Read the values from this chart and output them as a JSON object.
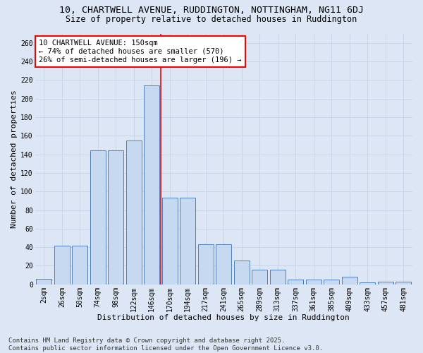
{
  "title": "10, CHARTWELL AVENUE, RUDDINGTON, NOTTINGHAM, NG11 6DJ",
  "subtitle": "Size of property relative to detached houses in Ruddington",
  "xlabel": "Distribution of detached houses by size in Ruddington",
  "ylabel": "Number of detached properties",
  "categories": [
    "2sqm",
    "26sqm",
    "50sqm",
    "74sqm",
    "98sqm",
    "122sqm",
    "146sqm",
    "170sqm",
    "194sqm",
    "217sqm",
    "241sqm",
    "265sqm",
    "289sqm",
    "313sqm",
    "337sqm",
    "361sqm",
    "385sqm",
    "409sqm",
    "433sqm",
    "457sqm",
    "481sqm"
  ],
  "values": [
    6,
    42,
    42,
    144,
    144,
    155,
    214,
    93,
    93,
    43,
    43,
    26,
    16,
    16,
    5,
    5,
    5,
    8,
    2,
    3,
    3
  ],
  "bar_color": "#c6d9f1",
  "bar_edge_color": "#4f81bd",
  "grid_color": "#c8d4e8",
  "background_color": "#dce6f5",
  "annotation_box_text": "10 CHARTWELL AVENUE: 150sqm\n← 74% of detached houses are smaller (570)\n26% of semi-detached houses are larger (196) →",
  "vline_x": 6.5,
  "ylim": [
    0,
    270
  ],
  "yticks": [
    0,
    20,
    40,
    60,
    80,
    100,
    120,
    140,
    160,
    180,
    200,
    220,
    240,
    260
  ],
  "footer_line1": "Contains HM Land Registry data © Crown copyright and database right 2025.",
  "footer_line2": "Contains public sector information licensed under the Open Government Licence v3.0.",
  "title_fontsize": 9.5,
  "subtitle_fontsize": 8.5,
  "xlabel_fontsize": 8,
  "ylabel_fontsize": 8,
  "tick_fontsize": 7,
  "footer_fontsize": 6.5,
  "annotation_fontsize": 7.5
}
